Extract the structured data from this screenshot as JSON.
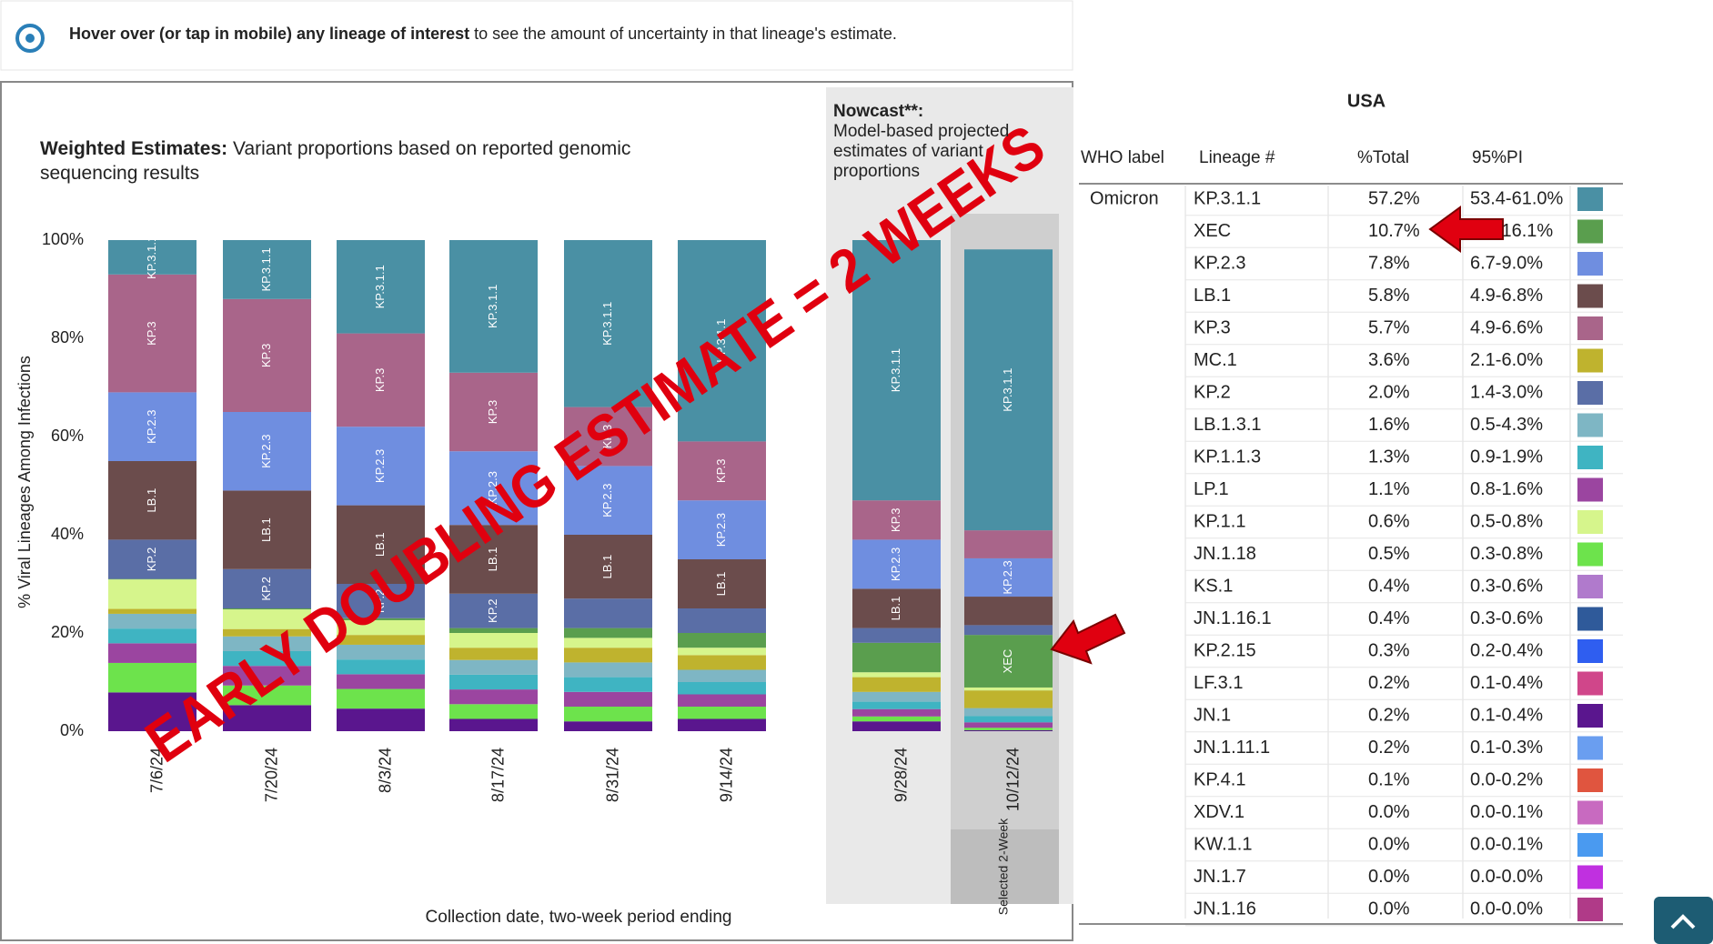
{
  "hint": {
    "bold": "Hover over (or tap in mobile) any lineage of interest",
    "rest": "to see the amount of uncertainty in that lineage's estimate."
  },
  "chart_data": {
    "type": "stacked-bar",
    "title_bold": "Weighted Estimates:",
    "title": "Variant proportions based on reported genomic sequencing results",
    "nowcast_title": "Nowcast**:",
    "nowcast_text": "Model-based projected estimates of variant proportions",
    "selected_button": "Selected 2-Week",
    "y_label": "% Viral Lineages Among Infections",
    "x_label": "Collection date, two-week period ending",
    "categories": [
      "7/6/24",
      "7/20/24",
      "8/3/24",
      "8/17/24",
      "8/31/24",
      "9/14/24",
      "9/28/24",
      "10/12/24"
    ],
    "ylim": [
      0,
      100
    ],
    "yticks": [
      {
        "value": 0,
        "label": "0%"
      },
      {
        "value": 20,
        "label": "20%"
      },
      {
        "value": 40,
        "label": "40%"
      },
      {
        "value": 60,
        "label": "60%"
      },
      {
        "value": 80,
        "label": "80%"
      },
      {
        "value": 100,
        "label": "100%"
      }
    ],
    "series": [
      {
        "name": "JN.1",
        "color": "#5a168e",
        "values": [
          7.9,
          5.3,
          4.6,
          2.5,
          2,
          2.5,
          2,
          0.2
        ]
      },
      {
        "name": "JN.1.18",
        "color": "#6de34c",
        "values": [
          6,
          4,
          4,
          3,
          3,
          2.5,
          1,
          0.5
        ]
      },
      {
        "name": "LP.1",
        "color": "#9b45a0",
        "values": [
          4,
          4,
          3,
          3,
          3,
          2.5,
          1.5,
          1.1
        ]
      },
      {
        "name": "KP.1.1.3",
        "color": "#3fb4c2",
        "values": [
          3,
          3,
          3,
          3,
          3,
          2.5,
          1.5,
          1.3
        ]
      },
      {
        "name": "LB.1.3.1",
        "color": "#7eb6c4",
        "values": [
          3,
          3,
          3,
          3,
          3,
          2.5,
          2,
          1.6
        ]
      },
      {
        "name": "MC.1",
        "color": "#bfb32e",
        "values": [
          1,
          1.5,
          2,
          2.5,
          3,
          3,
          3,
          3.6
        ]
      },
      {
        "name": "KP.1.1",
        "color": "#d6f58c",
        "values": [
          6,
          4,
          3,
          3,
          2,
          1.5,
          1,
          0.6
        ]
      },
      {
        "name": "XEC",
        "color": "#5a9e4e",
        "values": [
          0.1,
          0.2,
          0.4,
          1,
          2,
          3,
          6,
          10.7
        ]
      },
      {
        "name": "KP.2",
        "color": "#5a6ea6",
        "values": [
          8,
          8,
          7,
          7,
          6,
          5,
          3,
          2.0
        ]
      },
      {
        "name": "LB.1",
        "color": "#6b4c4c",
        "values": [
          16,
          16,
          16,
          14,
          13,
          10,
          8,
          5.8
        ]
      },
      {
        "name": "KP.2.3",
        "color": "#6f8ee0",
        "values": [
          14,
          16,
          16,
          15,
          14,
          12,
          10,
          7.8
        ]
      },
      {
        "name": "KP.3",
        "color": "#a9658a",
        "values": [
          24,
          23,
          19,
          16,
          12,
          12,
          8,
          5.7
        ]
      },
      {
        "name": "KP.3.1.1",
        "color": "#4a90a4",
        "values": [
          7,
          12,
          19,
          27,
          34,
          41,
          53,
          57.2
        ]
      }
    ]
  },
  "table": {
    "region": "USA",
    "columns": [
      "WHO label",
      "Lineage #",
      "%Total",
      "95%PI"
    ],
    "who_label": "Omicron",
    "rows": [
      {
        "lineage": "KP.3.1.1",
        "total": "57.2%",
        "pi": "53.4-61.0%",
        "color": "#4a90a4"
      },
      {
        "lineage": "XEC",
        "total": "10.7%",
        "pi": "6.9-16.1%",
        "color": "#5a9e4e"
      },
      {
        "lineage": "KP.2.3",
        "total": "7.8%",
        "pi": "6.7-9.0%",
        "color": "#6f8ee0"
      },
      {
        "lineage": "LB.1",
        "total": "5.8%",
        "pi": "4.9-6.8%",
        "color": "#6b4c4c"
      },
      {
        "lineage": "KP.3",
        "total": "5.7%",
        "pi": "4.9-6.6%",
        "color": "#a9658a"
      },
      {
        "lineage": "MC.1",
        "total": "3.6%",
        "pi": "2.1-6.0%",
        "color": "#bfb32e"
      },
      {
        "lineage": "KP.2",
        "total": "2.0%",
        "pi": "1.4-3.0%",
        "color": "#5a6ea6"
      },
      {
        "lineage": "LB.1.3.1",
        "total": "1.6%",
        "pi": "0.5-4.3%",
        "color": "#7eb6c4"
      },
      {
        "lineage": "KP.1.1.3",
        "total": "1.3%",
        "pi": "0.9-1.9%",
        "color": "#3fb4c2"
      },
      {
        "lineage": "LP.1",
        "total": "1.1%",
        "pi": "0.8-1.6%",
        "color": "#9b45a0"
      },
      {
        "lineage": "KP.1.1",
        "total": "0.6%",
        "pi": "0.5-0.8%",
        "color": "#d6f58c"
      },
      {
        "lineage": "JN.1.18",
        "total": "0.5%",
        "pi": "0.3-0.8%",
        "color": "#6de34c"
      },
      {
        "lineage": "KS.1",
        "total": "0.4%",
        "pi": "0.3-0.6%",
        "color": "#b07acc"
      },
      {
        "lineage": "JN.1.16.1",
        "total": "0.4%",
        "pi": "0.3-0.6%",
        "color": "#2f5a9a"
      },
      {
        "lineage": "KP.2.15",
        "total": "0.3%",
        "pi": "0.2-0.4%",
        "color": "#2f5ef0"
      },
      {
        "lineage": "LF.3.1",
        "total": "0.2%",
        "pi": "0.1-0.4%",
        "color": "#d0468a"
      },
      {
        "lineage": "JN.1",
        "total": "0.2%",
        "pi": "0.1-0.4%",
        "color": "#5a168e"
      },
      {
        "lineage": "JN.1.11.1",
        "total": "0.2%",
        "pi": "0.1-0.3%",
        "color": "#6a9ef0"
      },
      {
        "lineage": "KP.4.1",
        "total": "0.1%",
        "pi": "0.0-0.2%",
        "color": "#e0553f"
      },
      {
        "lineage": "XDV.1",
        "total": "0.0%",
        "pi": "0.0-0.1%",
        "color": "#c86ac0"
      },
      {
        "lineage": "KW.1.1",
        "total": "0.0%",
        "pi": "0.0-0.1%",
        "color": "#4a9af0"
      },
      {
        "lineage": "JN.1.7",
        "total": "0.0%",
        "pi": "0.0-0.0%",
        "color": "#c030e0"
      },
      {
        "lineage": "JN.1.16",
        "total": "0.0%",
        "pi": "0.0-0.0%",
        "color": "#b03a88"
      }
    ]
  },
  "annotation": "EARLY DOUBLING ESTIMATE = 2 WEEKS"
}
